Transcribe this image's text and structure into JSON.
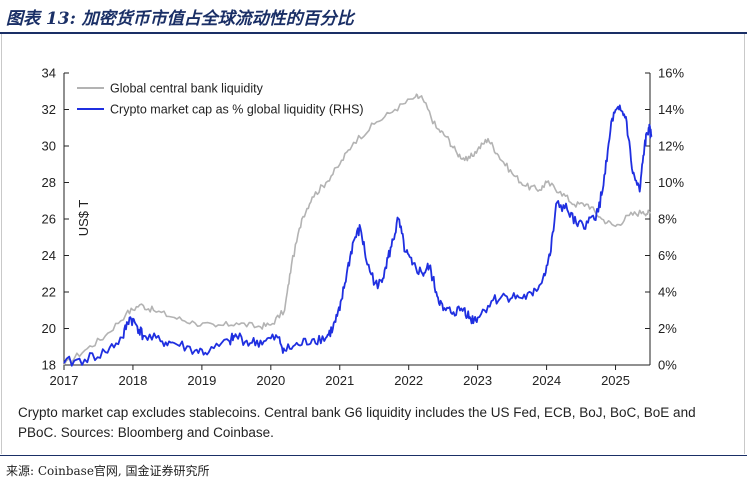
{
  "header": {
    "title": "图表 13:  加密货币市值占全球流动性的百分比"
  },
  "chart_data": {
    "type": "line",
    "title": "",
    "xlabel": "",
    "ylabel_left": "US$ T",
    "ylabel_right": "",
    "x_ticks": [
      "2017",
      "2018",
      "2019",
      "2020",
      "2021",
      "2022",
      "2023",
      "2024",
      "2025"
    ],
    "ylim_left": [
      18,
      34
    ],
    "yticks_left": [
      "18",
      "20",
      "22",
      "24",
      "26",
      "28",
      "30",
      "32",
      "34"
    ],
    "ylim_right": [
      0,
      16
    ],
    "yticks_right": [
      "0%",
      "2%",
      "4%",
      "6%",
      "8%",
      "10%",
      "12%",
      "14%",
      "16%"
    ],
    "legend_position": "top-left",
    "grid": false,
    "series": [
      {
        "name": "Global central bank liquidity",
        "axis": "left",
        "color": "#b3b3b3",
        "points": [
          [
            2017.0,
            18.0
          ],
          [
            2017.3,
            18.8
          ],
          [
            2017.6,
            19.6
          ],
          [
            2017.9,
            20.8
          ],
          [
            2018.1,
            21.3
          ],
          [
            2018.3,
            21.0
          ],
          [
            2018.6,
            20.6
          ],
          [
            2018.9,
            20.3
          ],
          [
            2019.2,
            20.1
          ],
          [
            2019.5,
            20.3
          ],
          [
            2019.8,
            20.1
          ],
          [
            2020.0,
            20.2
          ],
          [
            2020.2,
            21.0
          ],
          [
            2020.3,
            23.5
          ],
          [
            2020.45,
            26.0
          ],
          [
            2020.6,
            27.2
          ],
          [
            2020.8,
            28.0
          ],
          [
            2021.0,
            29.0
          ],
          [
            2021.2,
            30.2
          ],
          [
            2021.5,
            31.2
          ],
          [
            2021.8,
            32.0
          ],
          [
            2022.1,
            32.7
          ],
          [
            2022.2,
            32.6
          ],
          [
            2022.4,
            31.0
          ],
          [
            2022.55,
            30.5
          ],
          [
            2022.7,
            29.6
          ],
          [
            2022.85,
            29.2
          ],
          [
            2023.0,
            29.8
          ],
          [
            2023.15,
            30.4
          ],
          [
            2023.3,
            29.5
          ],
          [
            2023.5,
            28.5
          ],
          [
            2023.7,
            27.8
          ],
          [
            2023.9,
            27.6
          ],
          [
            2024.0,
            28.0
          ],
          [
            2024.2,
            27.5
          ],
          [
            2024.4,
            26.8
          ],
          [
            2024.6,
            26.8
          ],
          [
            2024.8,
            26.0
          ],
          [
            2025.0,
            25.6
          ],
          [
            2025.2,
            26.2
          ],
          [
            2025.4,
            26.4
          ],
          [
            2025.5,
            26.3
          ]
        ]
      },
      {
        "name": "Crypto market cap as % global liquidity (RHS)",
        "axis": "right",
        "color": "#1f2fe0",
        "points": [
          [
            2017.0,
            0.1
          ],
          [
            2017.3,
            0.3
          ],
          [
            2017.6,
            0.7
          ],
          [
            2017.85,
            1.5
          ],
          [
            2017.95,
            2.6
          ],
          [
            2018.05,
            2.2
          ],
          [
            2018.15,
            1.6
          ],
          [
            2018.4,
            1.3
          ],
          [
            2018.6,
            1.2
          ],
          [
            2018.9,
            0.8
          ],
          [
            2019.1,
            0.7
          ],
          [
            2019.4,
            1.3
          ],
          [
            2019.5,
            1.6
          ],
          [
            2019.7,
            1.2
          ],
          [
            2019.9,
            1.3
          ],
          [
            2020.1,
            1.5
          ],
          [
            2020.2,
            0.8
          ],
          [
            2020.4,
            1.1
          ],
          [
            2020.6,
            1.4
          ],
          [
            2020.8,
            1.5
          ],
          [
            2020.9,
            2.0
          ],
          [
            2021.0,
            3.0
          ],
          [
            2021.1,
            5.0
          ],
          [
            2021.2,
            6.8
          ],
          [
            2021.3,
            7.5
          ],
          [
            2021.4,
            5.5
          ],
          [
            2021.55,
            4.2
          ],
          [
            2021.65,
            5.2
          ],
          [
            2021.75,
            6.5
          ],
          [
            2021.85,
            8.0
          ],
          [
            2021.95,
            6.2
          ],
          [
            2022.05,
            5.5
          ],
          [
            2022.2,
            5.0
          ],
          [
            2022.3,
            5.4
          ],
          [
            2022.4,
            4.0
          ],
          [
            2022.5,
            3.0
          ],
          [
            2022.65,
            2.9
          ],
          [
            2022.8,
            3.1
          ],
          [
            2022.9,
            2.5
          ],
          [
            2023.0,
            2.6
          ],
          [
            2023.2,
            3.5
          ],
          [
            2023.4,
            3.8
          ],
          [
            2023.6,
            3.7
          ],
          [
            2023.8,
            3.8
          ],
          [
            2023.95,
            4.8
          ],
          [
            2024.05,
            6.0
          ],
          [
            2024.15,
            8.9
          ],
          [
            2024.3,
            8.5
          ],
          [
            2024.45,
            7.6
          ],
          [
            2024.6,
            7.8
          ],
          [
            2024.75,
            8.4
          ],
          [
            2024.85,
            10.5
          ],
          [
            2024.95,
            13.5
          ],
          [
            2025.05,
            14.0
          ],
          [
            2025.15,
            13.6
          ],
          [
            2025.25,
            10.5
          ],
          [
            2025.35,
            9.5
          ],
          [
            2025.42,
            12.0
          ],
          [
            2025.48,
            13.0
          ],
          [
            2025.52,
            12.5
          ]
        ]
      }
    ]
  },
  "note": "Crypto market cap excludes stablecoins. Central bank G6 liquidity includes the US Fed, ECB, BoJ, BoC, BoE and PBoC. Sources: Bloomberg and Coinbase.",
  "source": "来源: Coinbase官网, 国金证券研究所"
}
